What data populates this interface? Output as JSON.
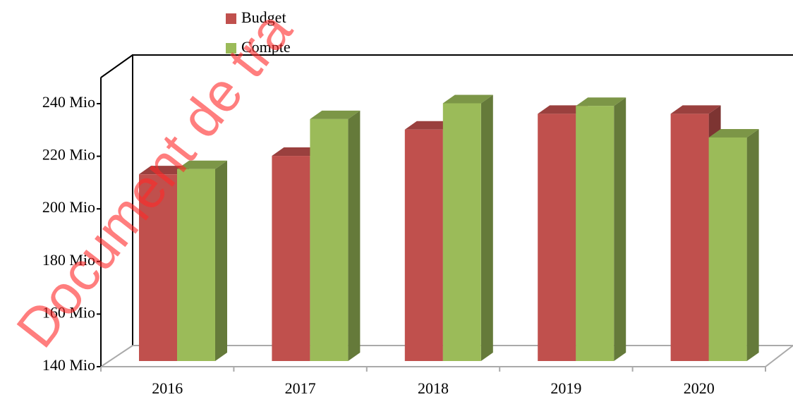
{
  "chart_data": {
    "type": "bar3d",
    "watermark": "Document de tra",
    "categories": [
      "2016",
      "2017",
      "2018",
      "2019",
      "2020"
    ],
    "series": [
      {
        "name": "Budget",
        "color": "#c0504d",
        "values": [
          211,
          218,
          228,
          234,
          234
        ]
      },
      {
        "name": "Compte",
        "color": "#9bbb59",
        "values": [
          213,
          232,
          238,
          237,
          225
        ]
      }
    ],
    "ylim": [
      140,
      250
    ],
    "yticks": [
      {
        "value": 140,
        "label": "140 Mio"
      },
      {
        "value": 160,
        "label": "160 Mio"
      },
      {
        "value": 180,
        "label": "180 Mio"
      },
      {
        "value": 200,
        "label": "200 Mio"
      },
      {
        "value": 220,
        "label": "220 Mio"
      },
      {
        "value": 240,
        "label": "240 Mio"
      }
    ],
    "legend": "top"
  }
}
